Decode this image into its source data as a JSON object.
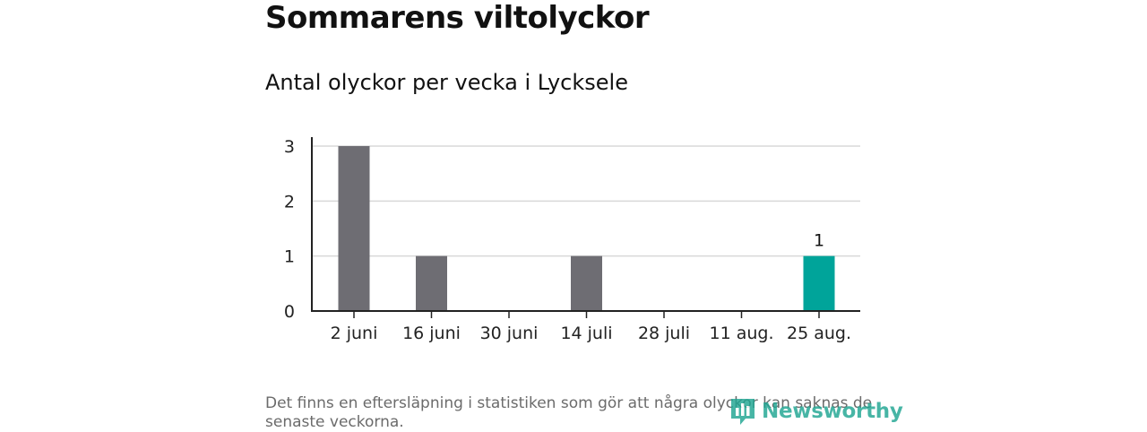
{
  "header": {
    "title": "Sommarens viltolyckor",
    "subtitle": "Antal olyckor per vecka i Lycksele"
  },
  "footer": {
    "note": "Det finns en eftersläpning i statistiken som gör att några olyckor kan saknas de senaste veckorna.",
    "brand": "Newsworthy",
    "brand_icon": "newsworthy-logo-icon"
  },
  "colors": {
    "bar": "#6e6d73",
    "highlight": "#00a49a",
    "grid": "#d9d9d9",
    "axis": "#222222",
    "brand": "#1fa592"
  },
  "chart_data": {
    "type": "bar",
    "title": "Antal olyckor per vecka i Lycksele",
    "xlabel": "",
    "ylabel": "",
    "ylim": [
      0,
      3
    ],
    "yticks": [
      0,
      1,
      2,
      3
    ],
    "x_tick_labels": [
      "2 juni",
      "16 juni",
      "30 juni",
      "14 juli",
      "28 juli",
      "11 aug.",
      "25 aug."
    ],
    "bars": [
      {
        "week_of": "2 juni",
        "value": 3
      },
      {
        "week_of": "16 juni",
        "value": 1
      },
      {
        "week_of": "14 juli",
        "value": 1
      },
      {
        "week_of": "25 aug.",
        "value": 1,
        "highlight": true,
        "label": "1"
      }
    ],
    "grid": true,
    "legend": "none"
  }
}
